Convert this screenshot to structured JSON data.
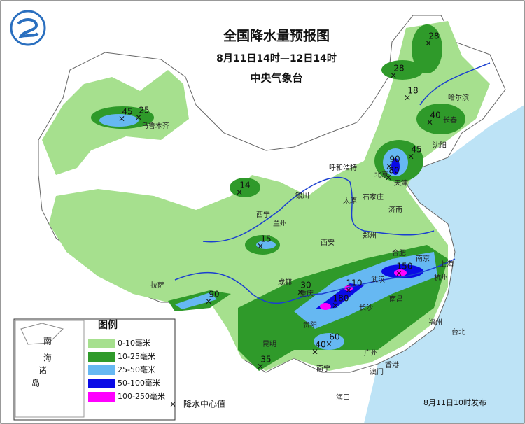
{
  "header": {
    "title": "全国降水量预报图",
    "subtitle": "8月11日14时—12日14时",
    "issuer": "中央气象台"
  },
  "legend": {
    "title": "图例",
    "items": [
      {
        "label": "0-10毫米",
        "color": "#a6e08e"
      },
      {
        "label": "10-25毫米",
        "color": "#2f9a2a"
      },
      {
        "label": "25-50毫米",
        "color": "#66b8f2"
      },
      {
        "label": "50-100毫米",
        "color": "#0a0ae6"
      },
      {
        "label": "100-250毫米",
        "color": "#ff00ff"
      }
    ],
    "center_symbol": "×",
    "center_label": "降水中心值"
  },
  "inset": {
    "labels": [
      "南",
      "海",
      "诸",
      "岛"
    ]
  },
  "precip_centers": [
    28,
    28,
    18,
    40,
    45,
    25,
    90,
    80,
    45,
    14,
    15,
    30,
    110,
    150,
    180,
    90,
    60,
    40,
    35
  ],
  "cities": [
    "乌鲁木齐",
    "哈尔滨",
    "长春",
    "沈阳",
    "北京",
    "天津",
    "石家庄",
    "呼和浩特",
    "银川",
    "太原",
    "济南",
    "西宁",
    "兰州",
    "郑州",
    "西安",
    "合肥",
    "南京",
    "上海",
    "杭州",
    "武汉",
    "成都",
    "重庆",
    "长沙",
    "南昌",
    "贵阳",
    "拉萨",
    "昆明",
    "南宁",
    "广州",
    "福州",
    "台北",
    "海口",
    "香港",
    "澳门"
  ],
  "footer": "8月11日10时发布"
}
